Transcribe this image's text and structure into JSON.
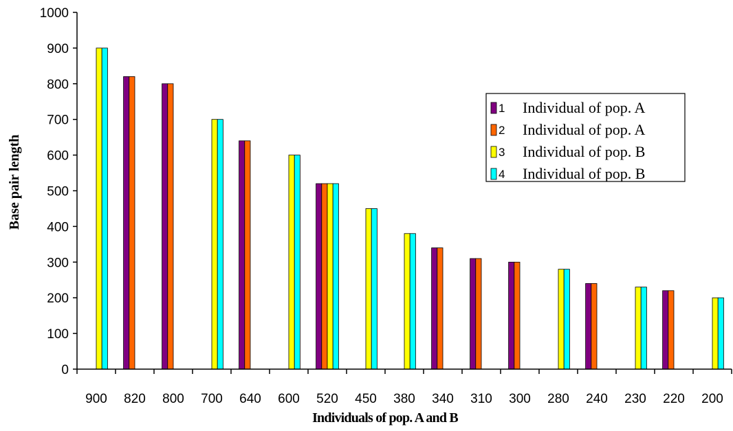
{
  "chart_data": {
    "type": "bar",
    "title": "",
    "xlabel": "Individuals of pop. A and B",
    "ylabel": "Base pair length",
    "ylim": [
      0,
      1000
    ],
    "yticks": [
      0,
      100,
      200,
      300,
      400,
      500,
      600,
      700,
      800,
      900,
      1000
    ],
    "grid": false,
    "legend_position": "right",
    "categories": [
      "900",
      "820",
      "800",
      "700",
      "640",
      "600",
      "520",
      "450",
      "380",
      "340",
      "310",
      "300",
      "280",
      "240",
      "230",
      "220",
      "200"
    ],
    "series": [
      {
        "name": "Individual of pop. A",
        "legend_number": "1",
        "color": "#800080",
        "values": [
          null,
          820,
          800,
          null,
          640,
          null,
          520,
          null,
          null,
          340,
          310,
          300,
          null,
          240,
          null,
          220,
          null
        ]
      },
      {
        "name": "Individual of pop. A",
        "legend_number": "2",
        "color": "#FF6600",
        "values": [
          null,
          820,
          800,
          null,
          640,
          null,
          520,
          null,
          null,
          340,
          310,
          300,
          null,
          240,
          null,
          220,
          null
        ]
      },
      {
        "name": "Individual of pop. B",
        "legend_number": "3",
        "color": "#FFFF00",
        "values": [
          900,
          null,
          null,
          700,
          null,
          600,
          520,
          450,
          380,
          null,
          null,
          null,
          280,
          null,
          230,
          null,
          200
        ]
      },
      {
        "name": "Individual of pop. B",
        "legend_number": "4",
        "color": "#00FFFF",
        "values": [
          900,
          null,
          null,
          700,
          null,
          600,
          520,
          450,
          380,
          null,
          null,
          null,
          280,
          null,
          230,
          null,
          200
        ]
      }
    ]
  }
}
